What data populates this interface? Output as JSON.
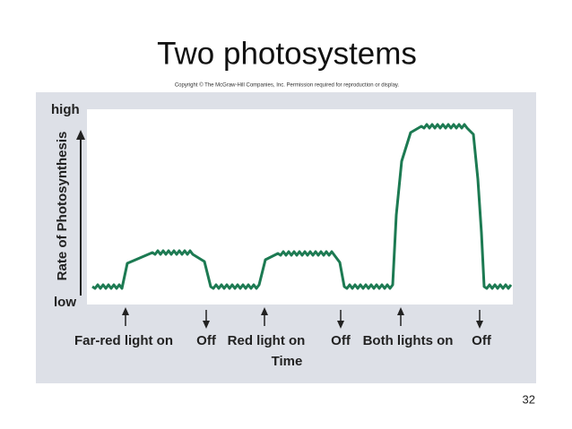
{
  "header": {
    "title": "Two photosystems",
    "copyright": "Copyright © The McGraw-Hill Companies, Inc. Permission required for reproduction or display."
  },
  "diagram": {
    "y_axis_label": "Rate of Photosynthesis",
    "y_high": "high",
    "y_low": "low",
    "x_axis_label": "Time",
    "events": [
      "Far-red light on",
      "Off",
      "Red light on",
      "Off",
      "Both lights on",
      "Off"
    ]
  },
  "footer": {
    "page_number": "32"
  }
}
